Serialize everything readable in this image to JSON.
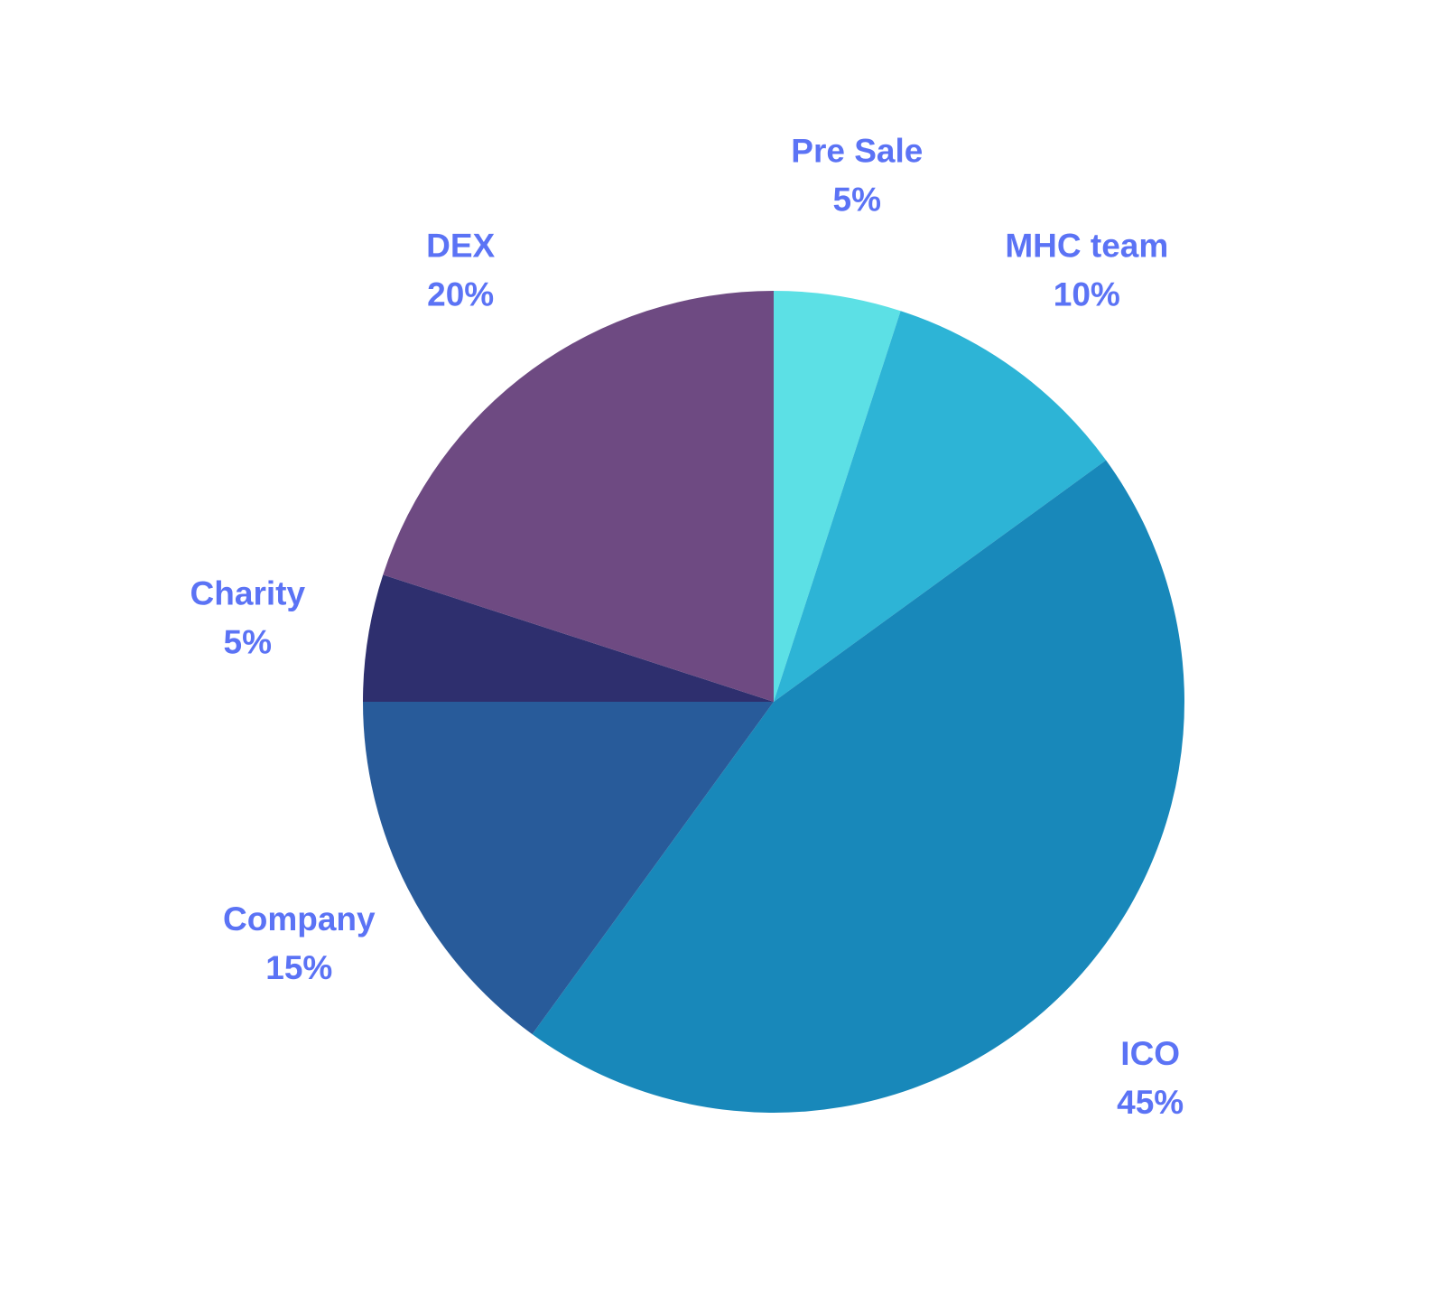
{
  "chart_data": {
    "type": "pie",
    "title": "",
    "start": "top",
    "direction": "clockwise",
    "label_color": "#5b73f5",
    "slices": [
      {
        "label": "Pre Sale",
        "value": 5,
        "value_label": "5%",
        "color": "#5ce0e5"
      },
      {
        "label": "MHC team",
        "value": 10,
        "value_label": "10%",
        "color": "#2db4d6"
      },
      {
        "label": "ICO",
        "value": 45,
        "value_label": "45%",
        "color": "#1888ba"
      },
      {
        "label": "Company",
        "value": 15,
        "value_label": "15%",
        "color": "#285b9a"
      },
      {
        "label": "Charity",
        "value": 5,
        "value_label": "5%",
        "color": "#2e2f6e"
      },
      {
        "label": "DEX",
        "value": 20,
        "value_label": "20%",
        "color": "#6e4a82"
      }
    ]
  }
}
